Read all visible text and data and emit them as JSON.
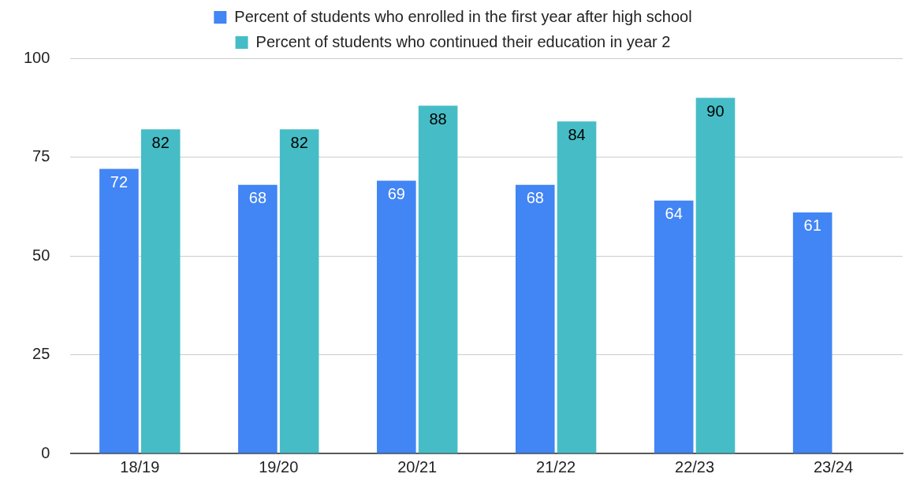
{
  "chart_data": {
    "type": "bar",
    "categories": [
      "18/19",
      "19/20",
      "20/21",
      "21/22",
      "22/23",
      "23/24"
    ],
    "series": [
      {
        "name": "Percent of students who enrolled in the first year after high school",
        "color": "#4285f4",
        "values": [
          72,
          68,
          69,
          68,
          64,
          61
        ]
      },
      {
        "name": "Percent of students who continued their education in year 2",
        "color": "#46bdc6",
        "values": [
          82,
          82,
          88,
          84,
          90,
          null
        ]
      }
    ],
    "ylim": [
      0,
      100
    ],
    "yticks": [
      0,
      25,
      50,
      75,
      100
    ],
    "grid": "y",
    "legend": "top",
    "data_labels": true
  }
}
